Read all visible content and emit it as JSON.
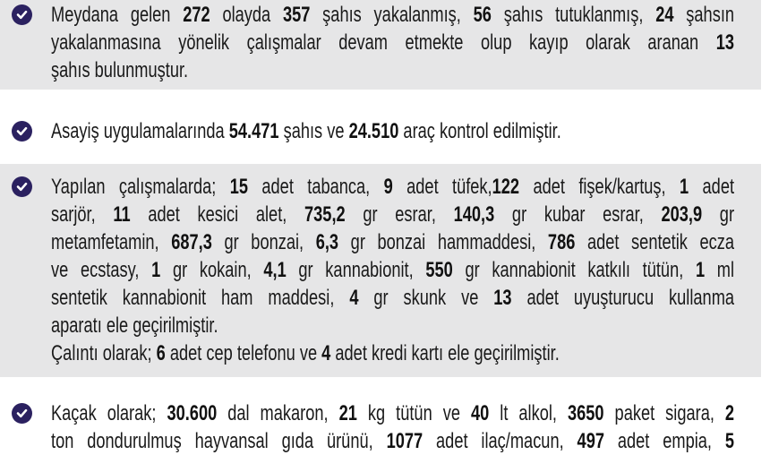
{
  "colors": {
    "band": "#e6e6e7",
    "check_icon": "#2b2160",
    "text": "#1a1a1a"
  },
  "rows": [
    {
      "icon": "check-circle-icon",
      "lines": [
        [
          {
            "text": "Meydana gelen "
          },
          {
            "text": "272",
            "bold": true
          },
          {
            "text": " olayda "
          },
          {
            "text": "357",
            "bold": true
          },
          {
            "text": " şahıs yakalanmış, "
          },
          {
            "text": "56",
            "bold": true
          },
          {
            "text": " şahıs tutuklanmış, "
          },
          {
            "text": "24",
            "bold": true
          },
          {
            "text": " şahsın"
          }
        ],
        [
          {
            "text": "yakalanmasına yönelik çalışmalar devam etmekte olup kayıp olarak aranan "
          },
          {
            "text": "13",
            "bold": true
          }
        ],
        [
          {
            "text": "şahıs bulunmuştur."
          }
        ]
      ]
    },
    {
      "icon": "check-circle-icon",
      "lines": [
        [
          {
            "text": "Asayiş uygulamalarında "
          },
          {
            "text": "54.471",
            "bold": true
          },
          {
            "text": " şahıs ve "
          },
          {
            "text": "24.510",
            "bold": true
          },
          {
            "text": " araç kontrol edilmiştir."
          }
        ]
      ]
    },
    {
      "icon": "check-circle-icon",
      "lines": [
        [
          {
            "text": "Yapılan çalışmalarda; "
          },
          {
            "text": "15",
            "bold": true
          },
          {
            "text": " adet tabanca, "
          },
          {
            "text": "9",
            "bold": true
          },
          {
            "text": " adet tüfek,"
          },
          {
            "text": "122",
            "bold": true
          },
          {
            "text": " adet fişek/kartuş, "
          },
          {
            "text": "1",
            "bold": true
          },
          {
            "text": " adet"
          }
        ],
        [
          {
            "text": "sarjör, "
          },
          {
            "text": "11",
            "bold": true
          },
          {
            "text": " adet kesici alet, "
          },
          {
            "text": "735,2",
            "bold": true
          },
          {
            "text": " gr esrar, "
          },
          {
            "text": "140,3",
            "bold": true
          },
          {
            "text": " gr kubar esrar, "
          },
          {
            "text": "203,9",
            "bold": true
          },
          {
            "text": " gr"
          }
        ],
        [
          {
            "text": "metamfetamin, "
          },
          {
            "text": "687,3",
            "bold": true
          },
          {
            "text": " gr bonzai, "
          },
          {
            "text": "6,3",
            "bold": true
          },
          {
            "text": " gr bonzai hammaddesi, "
          },
          {
            "text": "786",
            "bold": true
          },
          {
            "text": " adet sentetik ecza"
          }
        ],
        [
          {
            "text": "ve ecstasy, "
          },
          {
            "text": "1",
            "bold": true
          },
          {
            "text": " gr kokain, "
          },
          {
            "text": "4,1",
            "bold": true
          },
          {
            "text": " gr kannabionit, "
          },
          {
            "text": "550",
            "bold": true
          },
          {
            "text": " gr kannabionit katkılı tütün, "
          },
          {
            "text": "1",
            "bold": true
          },
          {
            "text": " ml"
          }
        ],
        [
          {
            "text": "sentetik kannabionit ham maddesi, "
          },
          {
            "text": "4",
            "bold": true
          },
          {
            "text": " gr skunk ve "
          },
          {
            "text": "13",
            "bold": true
          },
          {
            "text": " adet uyuşturucu kullanma"
          }
        ],
        [
          {
            "text": "aparatı ele geçirilmiştir."
          }
        ],
        [
          {
            "text": "Çalıntı olarak;  "
          },
          {
            "text": "6",
            "bold": true
          },
          {
            "text": " adet cep telefonu ve "
          },
          {
            "text": "4",
            "bold": true
          },
          {
            "text": " adet kredi kartı ele geçirilmiştir."
          }
        ]
      ]
    },
    {
      "icon": "check-circle-icon",
      "lines": [
        [
          {
            "text": "Kaçak olarak; "
          },
          {
            "text": "30.600",
            "bold": true
          },
          {
            "text": " dal makaron, "
          },
          {
            "text": "21",
            "bold": true
          },
          {
            "text": " kg tütün ve "
          },
          {
            "text": "40",
            "bold": true
          },
          {
            "text": " lt alkol, "
          },
          {
            "text": "3650",
            "bold": true
          },
          {
            "text": " paket sigara, "
          },
          {
            "text": "2",
            "bold": true
          }
        ],
        [
          {
            "text": "ton dondurulmuş hayvansal gıda ürünü, "
          },
          {
            "text": "1077",
            "bold": true
          },
          {
            "text": " adet ilaç/macun, "
          },
          {
            "text": "497",
            "bold": true
          },
          {
            "text": " adet empia, "
          },
          {
            "text": "5",
            "bold": true
          }
        ]
      ]
    }
  ]
}
